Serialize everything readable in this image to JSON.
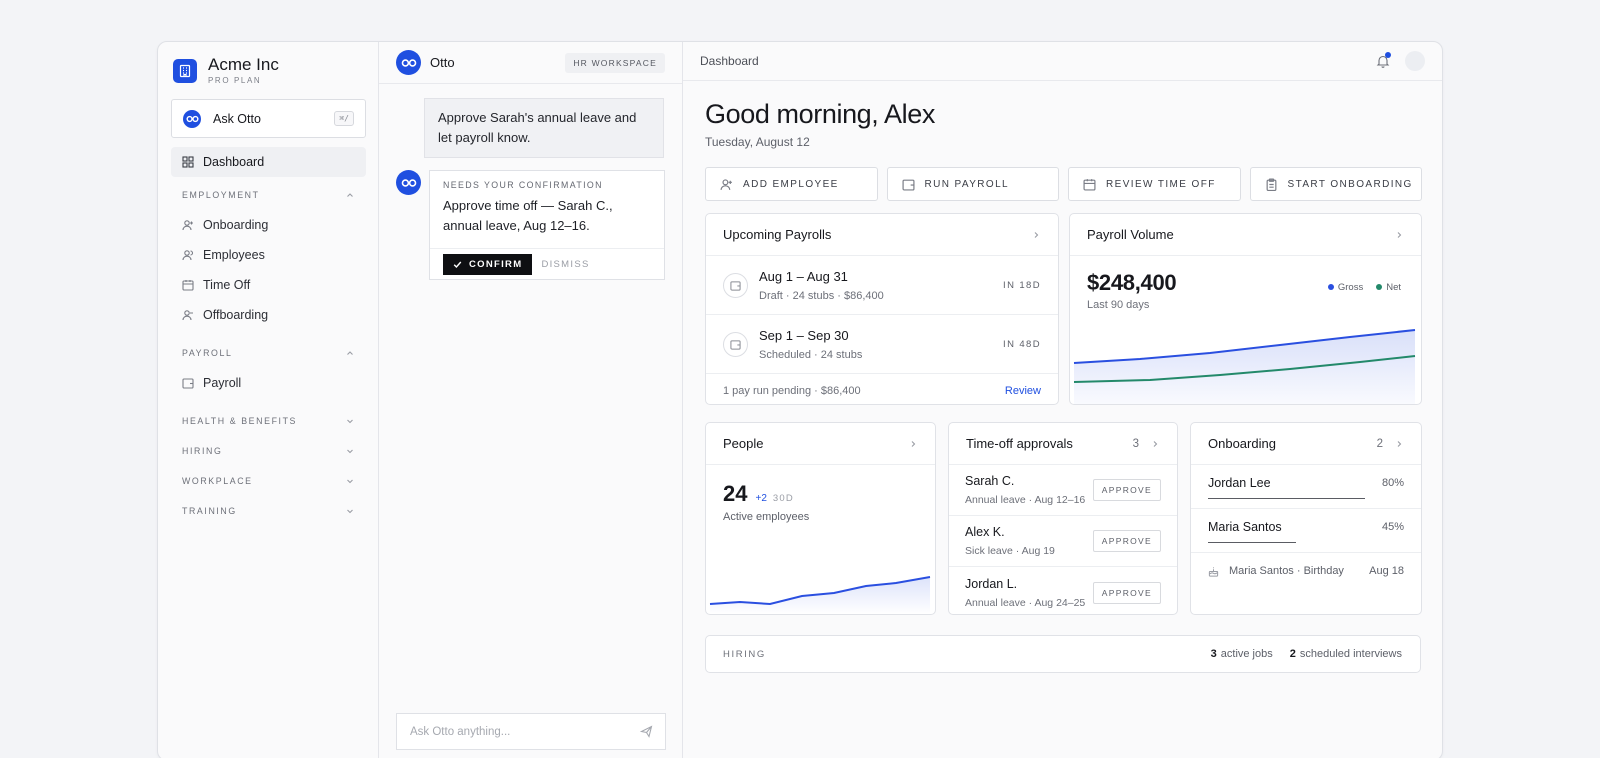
{
  "brand": {
    "name": "Acme Inc",
    "plan": "PRO PLAN"
  },
  "ask": {
    "label": "Ask Otto",
    "shortcut": "⌘/"
  },
  "sidebar": {
    "dashboard": "Dashboard",
    "employment": {
      "title": "EMPLOYMENT",
      "items": [
        "Onboarding",
        "Employees",
        "Time Off",
        "Offboarding"
      ]
    },
    "payroll": {
      "title": "PAYROLL",
      "items": [
        "Payroll"
      ]
    },
    "collapsed_sections": [
      "HEALTH & BENEFITS",
      "HIRING",
      "WORKPLACE",
      "TRAINING"
    ]
  },
  "chat": {
    "title": "Otto",
    "badge": "HR WORKSPACE",
    "user_message": "Approve Sarah's annual leave and let payroll know.",
    "confirm": {
      "kicker": "NEEDS YOUR CONFIRMATION",
      "text": "Approve time off — Sarah C., annual leave, Aug 12–16.",
      "confirm_label": "CONFIRM",
      "dismiss_label": "DISMISS"
    },
    "input_placeholder": "Ask Otto anything..."
  },
  "topbar": {
    "title": "Dashboard"
  },
  "greeting": "Good morning, Alex",
  "date": "Tuesday, August 12",
  "quick_actions": [
    "ADD EMPLOYEE",
    "RUN PAYROLL",
    "REVIEW TIME OFF",
    "START ONBOARDING"
  ],
  "upcoming_payrolls": {
    "title": "Upcoming Payrolls",
    "rows": [
      {
        "range": "Aug 1 – Aug 31",
        "sub": "Draft · 24 stubs · $86,400",
        "due": "IN 18D"
      },
      {
        "range": "Sep 1 – Sep 30",
        "sub": "Scheduled · 24 stubs",
        "due": "IN 48D"
      }
    ],
    "footer": "1 pay run pending · $86,400",
    "footer_link": "Review"
  },
  "payroll_volume": {
    "title": "Payroll Volume",
    "amount": "$248,400",
    "period": "Last 90 days",
    "legend": [
      {
        "name": "Gross",
        "color": "#2a4fe0"
      },
      {
        "name": "Net",
        "color": "#23896a"
      }
    ]
  },
  "people": {
    "title": "People",
    "count": "24",
    "delta": "+2",
    "delta_period": "30D",
    "sub": "Active employees"
  },
  "time_off": {
    "title": "Time-off approvals",
    "count": "3",
    "approve_label": "APPROVE",
    "rows": [
      {
        "name": "Sarah C.",
        "sub": "Annual leave · Aug 12–16"
      },
      {
        "name": "Alex K.",
        "sub": "Sick leave · Aug 19"
      },
      {
        "name": "Jordan L.",
        "sub": "Annual leave · Aug 24–25"
      }
    ]
  },
  "onboarding": {
    "title": "Onboarding",
    "count": "2",
    "rows": [
      {
        "name": "Jordan Lee",
        "pct": "80%",
        "progress": 0.8
      },
      {
        "name": "Maria Santos",
        "pct": "45%",
        "progress": 0.45
      }
    ],
    "event": "Maria Santos · Birthday",
    "event_date": "Aug 18"
  },
  "hiring": {
    "label": "HIRING",
    "active_jobs_num": "3",
    "active_jobs_label": "active jobs",
    "interviews_num": "2",
    "interviews_label": "scheduled interviews"
  },
  "colors": {
    "accent": "#1f4fe0",
    "net": "#23896a",
    "ink": "#17181d"
  }
}
